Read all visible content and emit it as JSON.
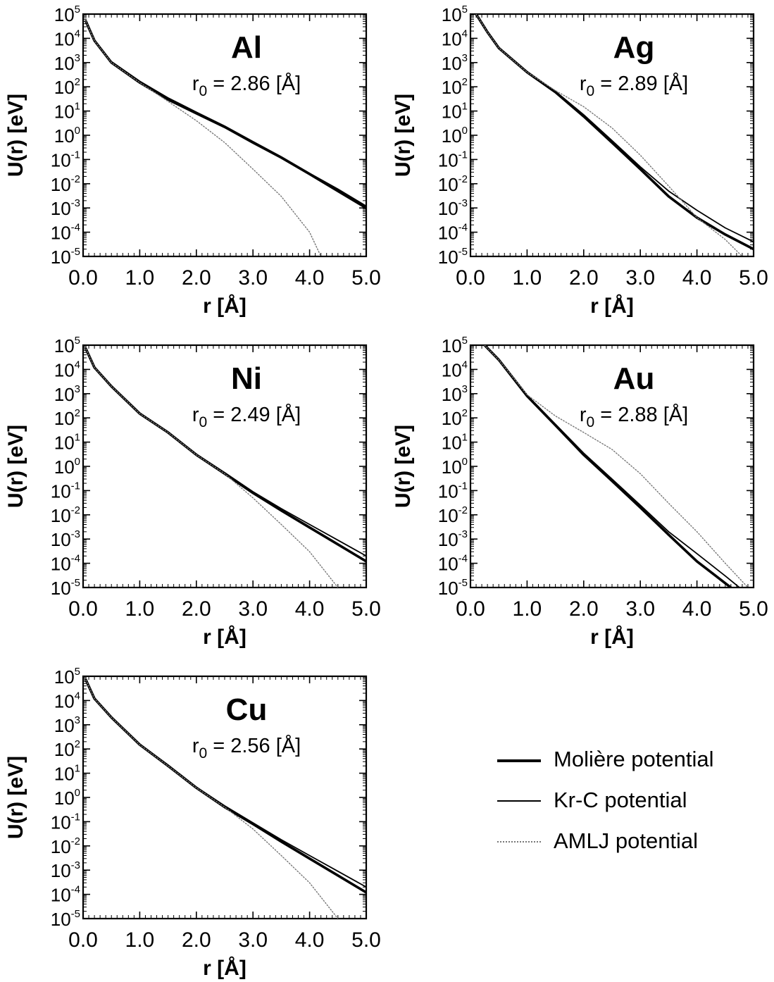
{
  "chart_data": [
    {
      "type": "line",
      "title": "Al",
      "subtitle": "r0 = 2.86 [Å]",
      "subtitle_prefix": "r",
      "subtitle_sub": "0",
      "subtitle_rest": " = 2.86 [Å]",
      "xlabel": "r [Å]",
      "ylabel": "U(r) [eV]",
      "xlim": [
        0,
        5
      ],
      "ylim": [
        1e-05,
        100000.0
      ],
      "yscale": "log",
      "xticks": [
        "0.0",
        "1.0",
        "2.0",
        "3.0",
        "4.0",
        "5.0"
      ],
      "yticks": [
        "10^5",
        "10^4",
        "10^3",
        "10^2",
        "10^1",
        "10^0",
        "10^-1",
        "10^-2",
        "10^-3",
        "10^-4",
        "10^-5"
      ],
      "grid": false,
      "series": [
        {
          "name": "Molière potential",
          "x": [
            0.05,
            0.2,
            0.5,
            1.0,
            1.5,
            2.0,
            2.5,
            3.0,
            3.5,
            4.0,
            4.5,
            5.0
          ],
          "y": [
            50000,
            8000,
            1000,
            150,
            30,
            8,
            2.2,
            0.5,
            0.12,
            0.025,
            0.005,
            0.001
          ]
        },
        {
          "name": "Kr-C potential",
          "x": [
            0.05,
            0.2,
            0.5,
            1.0,
            1.5,
            2.0,
            2.5,
            3.0,
            3.5,
            4.0,
            4.5,
            5.0
          ],
          "y": [
            52000,
            8500,
            1100,
            170,
            35,
            9,
            2.4,
            0.55,
            0.13,
            0.027,
            0.006,
            0.0012
          ]
        },
        {
          "name": "AMLJ potential",
          "x": [
            0.05,
            0.2,
            0.5,
            1.0,
            1.5,
            2.0,
            2.5,
            3.0,
            3.5,
            4.0,
            4.2
          ],
          "y": [
            50000,
            8000,
            1000,
            150,
            25,
            4,
            0.5,
            0.04,
            0.003,
            0.0001,
            1e-05
          ]
        }
      ]
    },
    {
      "type": "line",
      "title": "Ag",
      "subtitle": "r0 = 2.89 [Å]",
      "subtitle_prefix": "r",
      "subtitle_sub": "0",
      "subtitle_rest": " = 2.89 [Å]",
      "xlabel": "r [Å]",
      "ylabel": "U(r) [eV]",
      "xlim": [
        0,
        5
      ],
      "ylim": [
        1e-05,
        100000.0
      ],
      "yscale": "log",
      "xticks": [
        "0.0",
        "1.0",
        "2.0",
        "3.0",
        "4.0",
        "5.0"
      ],
      "yticks": [
        "10^5",
        "10^4",
        "10^3",
        "10^2",
        "10^1",
        "10^0",
        "10^-1",
        "10^-2",
        "10^-3",
        "10^-4",
        "10^-5"
      ],
      "grid": false,
      "series": [
        {
          "name": "Molière potential",
          "x": [
            0.1,
            0.3,
            0.5,
            1.0,
            1.5,
            2.0,
            2.5,
            3.0,
            3.5,
            4.0,
            4.5,
            5.0
          ],
          "y": [
            100000,
            18000,
            4000,
            400,
            60,
            6,
            0.5,
            0.04,
            0.003,
            0.0004,
            8e-05,
            2e-05
          ]
        },
        {
          "name": "Kr-C potential",
          "x": [
            0.1,
            0.3,
            0.5,
            1.0,
            1.5,
            2.0,
            2.5,
            3.0,
            3.5,
            4.0,
            4.5,
            5.0
          ],
          "y": [
            100000,
            18000,
            4000,
            420,
            65,
            7,
            0.6,
            0.05,
            0.005,
            0.0008,
            0.00015,
            4e-05
          ]
        },
        {
          "name": "AMLJ potential",
          "x": [
            0.1,
            0.3,
            0.5,
            1.0,
            1.5,
            2.0,
            2.5,
            3.0,
            3.5,
            4.0,
            4.5,
            4.8
          ],
          "y": [
            100000,
            18000,
            4000,
            400,
            70,
            15,
            2,
            0.15,
            0.008,
            0.0004,
            5e-05,
            1e-05
          ]
        }
      ]
    },
    {
      "type": "line",
      "title": "Ni",
      "subtitle": "r0 = 2.49 [Å]",
      "subtitle_prefix": "r",
      "subtitle_sub": "0",
      "subtitle_rest": " = 2.49 [Å]",
      "xlabel": "r [Å]",
      "ylabel": "U(r) [eV]",
      "xlim": [
        0,
        5
      ],
      "ylim": [
        1e-05,
        100000.0
      ],
      "yscale": "log",
      "xticks": [
        "0.0",
        "1.0",
        "2.0",
        "3.0",
        "4.0",
        "5.0"
      ],
      "yticks": [
        "10^5",
        "10^4",
        "10^3",
        "10^2",
        "10^1",
        "10^0",
        "10^-1",
        "10^-2",
        "10^-3",
        "10^-4",
        "10^-5"
      ],
      "grid": false,
      "series": [
        {
          "name": "Molière potential",
          "x": [
            0.05,
            0.2,
            0.5,
            1.0,
            1.5,
            2.0,
            2.5,
            3.0,
            3.5,
            4.0,
            4.5,
            5.0
          ],
          "y": [
            70000,
            12000,
            2000,
            150,
            25,
            3,
            0.5,
            0.08,
            0.015,
            0.003,
            0.0006,
            0.00012
          ]
        },
        {
          "name": "Kr-C potential",
          "x": [
            0.05,
            0.2,
            0.5,
            1.0,
            1.5,
            2.0,
            2.5,
            3.0,
            3.5,
            4.0,
            4.5,
            5.0
          ],
          "y": [
            72000,
            12500,
            2100,
            160,
            26,
            3.2,
            0.55,
            0.09,
            0.018,
            0.004,
            0.0009,
            0.0002
          ]
        },
        {
          "name": "AMLJ potential",
          "x": [
            0.05,
            0.2,
            0.5,
            1.0,
            1.5,
            2.0,
            2.5,
            3.0,
            3.5,
            4.0,
            4.5
          ],
          "y": [
            70000,
            12000,
            2000,
            150,
            25,
            3,
            0.5,
            0.05,
            0.004,
            0.0003,
            1e-05
          ]
        }
      ]
    },
    {
      "type": "line",
      "title": "Au",
      "subtitle": "r0 = 2.88 [Å]",
      "subtitle_prefix": "r",
      "subtitle_sub": "0",
      "subtitle_rest": " = 2.88 [Å]",
      "xlabel": "r [Å]",
      "ylabel": "U(r) [eV]",
      "xlim": [
        0,
        5
      ],
      "ylim": [
        1e-05,
        100000.0
      ],
      "yscale": "log",
      "xticks": [
        "0.0",
        "1.0",
        "2.0",
        "3.0",
        "4.0",
        "5.0"
      ],
      "yticks": [
        "10^5",
        "10^4",
        "10^3",
        "10^2",
        "10^1",
        "10^0",
        "10^-1",
        "10^-2",
        "10^-3",
        "10^-4",
        "10^-5"
      ],
      "grid": false,
      "series": [
        {
          "name": "Molière potential",
          "x": [
            0.25,
            0.5,
            1.0,
            1.5,
            2.0,
            2.5,
            3.0,
            3.5,
            4.0,
            4.5,
            4.6
          ],
          "y": [
            100000,
            25000,
            800,
            50,
            3,
            0.25,
            0.02,
            0.0015,
            0.00012,
            1.5e-05,
            1e-05
          ]
        },
        {
          "name": "Kr-C potential",
          "x": [
            0.25,
            0.5,
            1.0,
            1.5,
            2.0,
            2.5,
            3.0,
            3.5,
            4.0,
            4.5,
            4.75
          ],
          "y": [
            100000,
            25000,
            850,
            55,
            3.5,
            0.3,
            0.025,
            0.002,
            0.00025,
            3e-05,
            1e-05
          ]
        },
        {
          "name": "AMLJ potential",
          "x": [
            0.25,
            0.5,
            1.0,
            1.5,
            2.0,
            2.5,
            3.0,
            3.5,
            4.0,
            4.5,
            4.9
          ],
          "y": [
            100000,
            25000,
            900,
            120,
            25,
            5,
            0.5,
            0.03,
            0.002,
            0.0001,
            1e-05
          ]
        }
      ]
    },
    {
      "type": "line",
      "title": "Cu",
      "subtitle": "r0 = 2.56 [Å]",
      "subtitle_prefix": "r",
      "subtitle_sub": "0",
      "subtitle_rest": " = 2.56 [Å]",
      "xlabel": "r [Å]",
      "ylabel": "U(r) [eV]",
      "xlim": [
        0,
        5
      ],
      "ylim": [
        1e-05,
        100000.0
      ],
      "yscale": "log",
      "xticks": [
        "0.0",
        "1.0",
        "2.0",
        "3.0",
        "4.0",
        "5.0"
      ],
      "yticks": [
        "10^5",
        "10^4",
        "10^3",
        "10^2",
        "10^1",
        "10^0",
        "10^-1",
        "10^-2",
        "10^-3",
        "10^-4",
        "10^-5"
      ],
      "grid": false,
      "series": [
        {
          "name": "Molière potential",
          "x": [
            0.05,
            0.2,
            0.5,
            1.0,
            1.5,
            2.0,
            2.5,
            3.0,
            3.5,
            4.0,
            4.5,
            5.0
          ],
          "y": [
            70000,
            12000,
            2000,
            150,
            20,
            2.5,
            0.4,
            0.08,
            0.015,
            0.003,
            0.0006,
            0.00012
          ]
        },
        {
          "name": "Kr-C potential",
          "x": [
            0.05,
            0.2,
            0.5,
            1.0,
            1.5,
            2.0,
            2.5,
            3.0,
            3.5,
            4.0,
            4.5,
            5.0
          ],
          "y": [
            72000,
            12500,
            2100,
            160,
            22,
            2.7,
            0.45,
            0.09,
            0.018,
            0.004,
            0.0009,
            0.0002
          ]
        },
        {
          "name": "AMLJ potential",
          "x": [
            0.05,
            0.2,
            0.5,
            1.0,
            1.5,
            2.0,
            2.5,
            3.0,
            3.5,
            4.0,
            4.5
          ],
          "y": [
            70000,
            12000,
            2000,
            150,
            20,
            2.5,
            0.4,
            0.05,
            0.004,
            0.0003,
            1e-05
          ]
        }
      ]
    }
  ],
  "legend": {
    "placement": "bottom-right",
    "items": [
      {
        "label": "Molière potential",
        "style": "solid",
        "weight": "thick",
        "color": "#000000"
      },
      {
        "label": "Kr-C potential",
        "style": "solid",
        "weight": "thin",
        "color": "#000000"
      },
      {
        "label": "AMLJ potential",
        "style": "dotted",
        "weight": "thin",
        "color": "#777777"
      }
    ]
  }
}
